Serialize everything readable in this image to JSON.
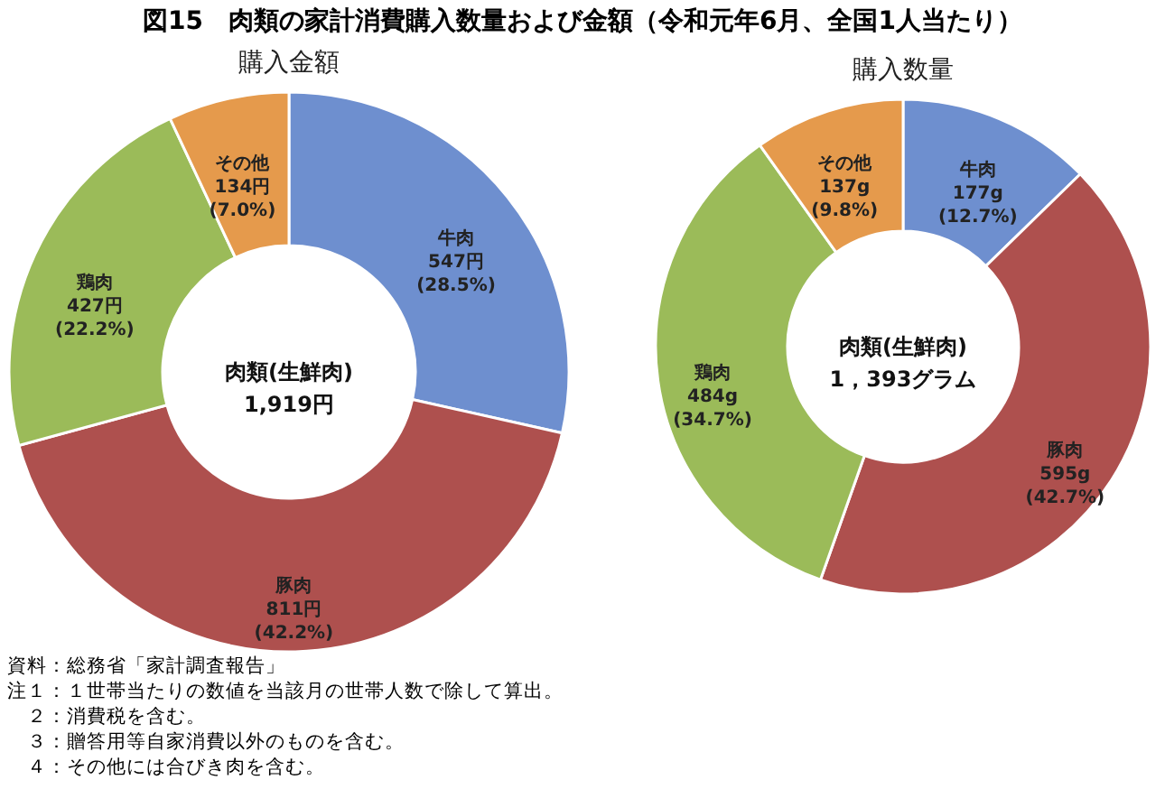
{
  "chart_data": [
    {
      "type": "donut",
      "title": "図15　肉類の家計消費購入数量および金額（令和元年6月、全国1人当たり）",
      "subtitle": "購入金額",
      "categories": [
        "牛肉",
        "豚肉",
        "鶏肉",
        "その他"
      ],
      "values": [
        547,
        811,
        427,
        134
      ],
      "colors": [
        "#6e8fcf",
        "#ae504e",
        "#9bbb59",
        "#e59a4c"
      ],
      "value_labels": [
        "547円\n(28.5%)",
        "811円\n(42.2%)",
        "427円\n(22.2%)",
        "134円\n(7.0%)"
      ],
      "annotations": [
        "肉類(生鮮肉)\n1,919円",
        "資料：総務省「家計調査報告」",
        "注１：１世帯当たりの数値を当該月の世帯人数で除して算出。",
        "　２：消費税を含む。",
        "　３：贈答用等自家消費以外のものを含む。",
        "　４：その他には合びき肉を含む。"
      ]
    },
    {
      "type": "donut",
      "subtitle": "購入数量",
      "categories": [
        "牛肉",
        "豚肉",
        "鶏肉",
        "その他"
      ],
      "values": [
        177,
        595,
        484,
        137
      ],
      "colors": [
        "#6e8fcf",
        "#ae504e",
        "#9bbb59",
        "#e59a4c"
      ],
      "value_labels": [
        "177g\n(12.7%)",
        "595g\n(42.7%)",
        "484g\n(34.7%)",
        "137g\n(9.8%)"
      ],
      "annotations": [
        "肉類(生鮮肉)\n1，393グラム"
      ]
    }
  ]
}
